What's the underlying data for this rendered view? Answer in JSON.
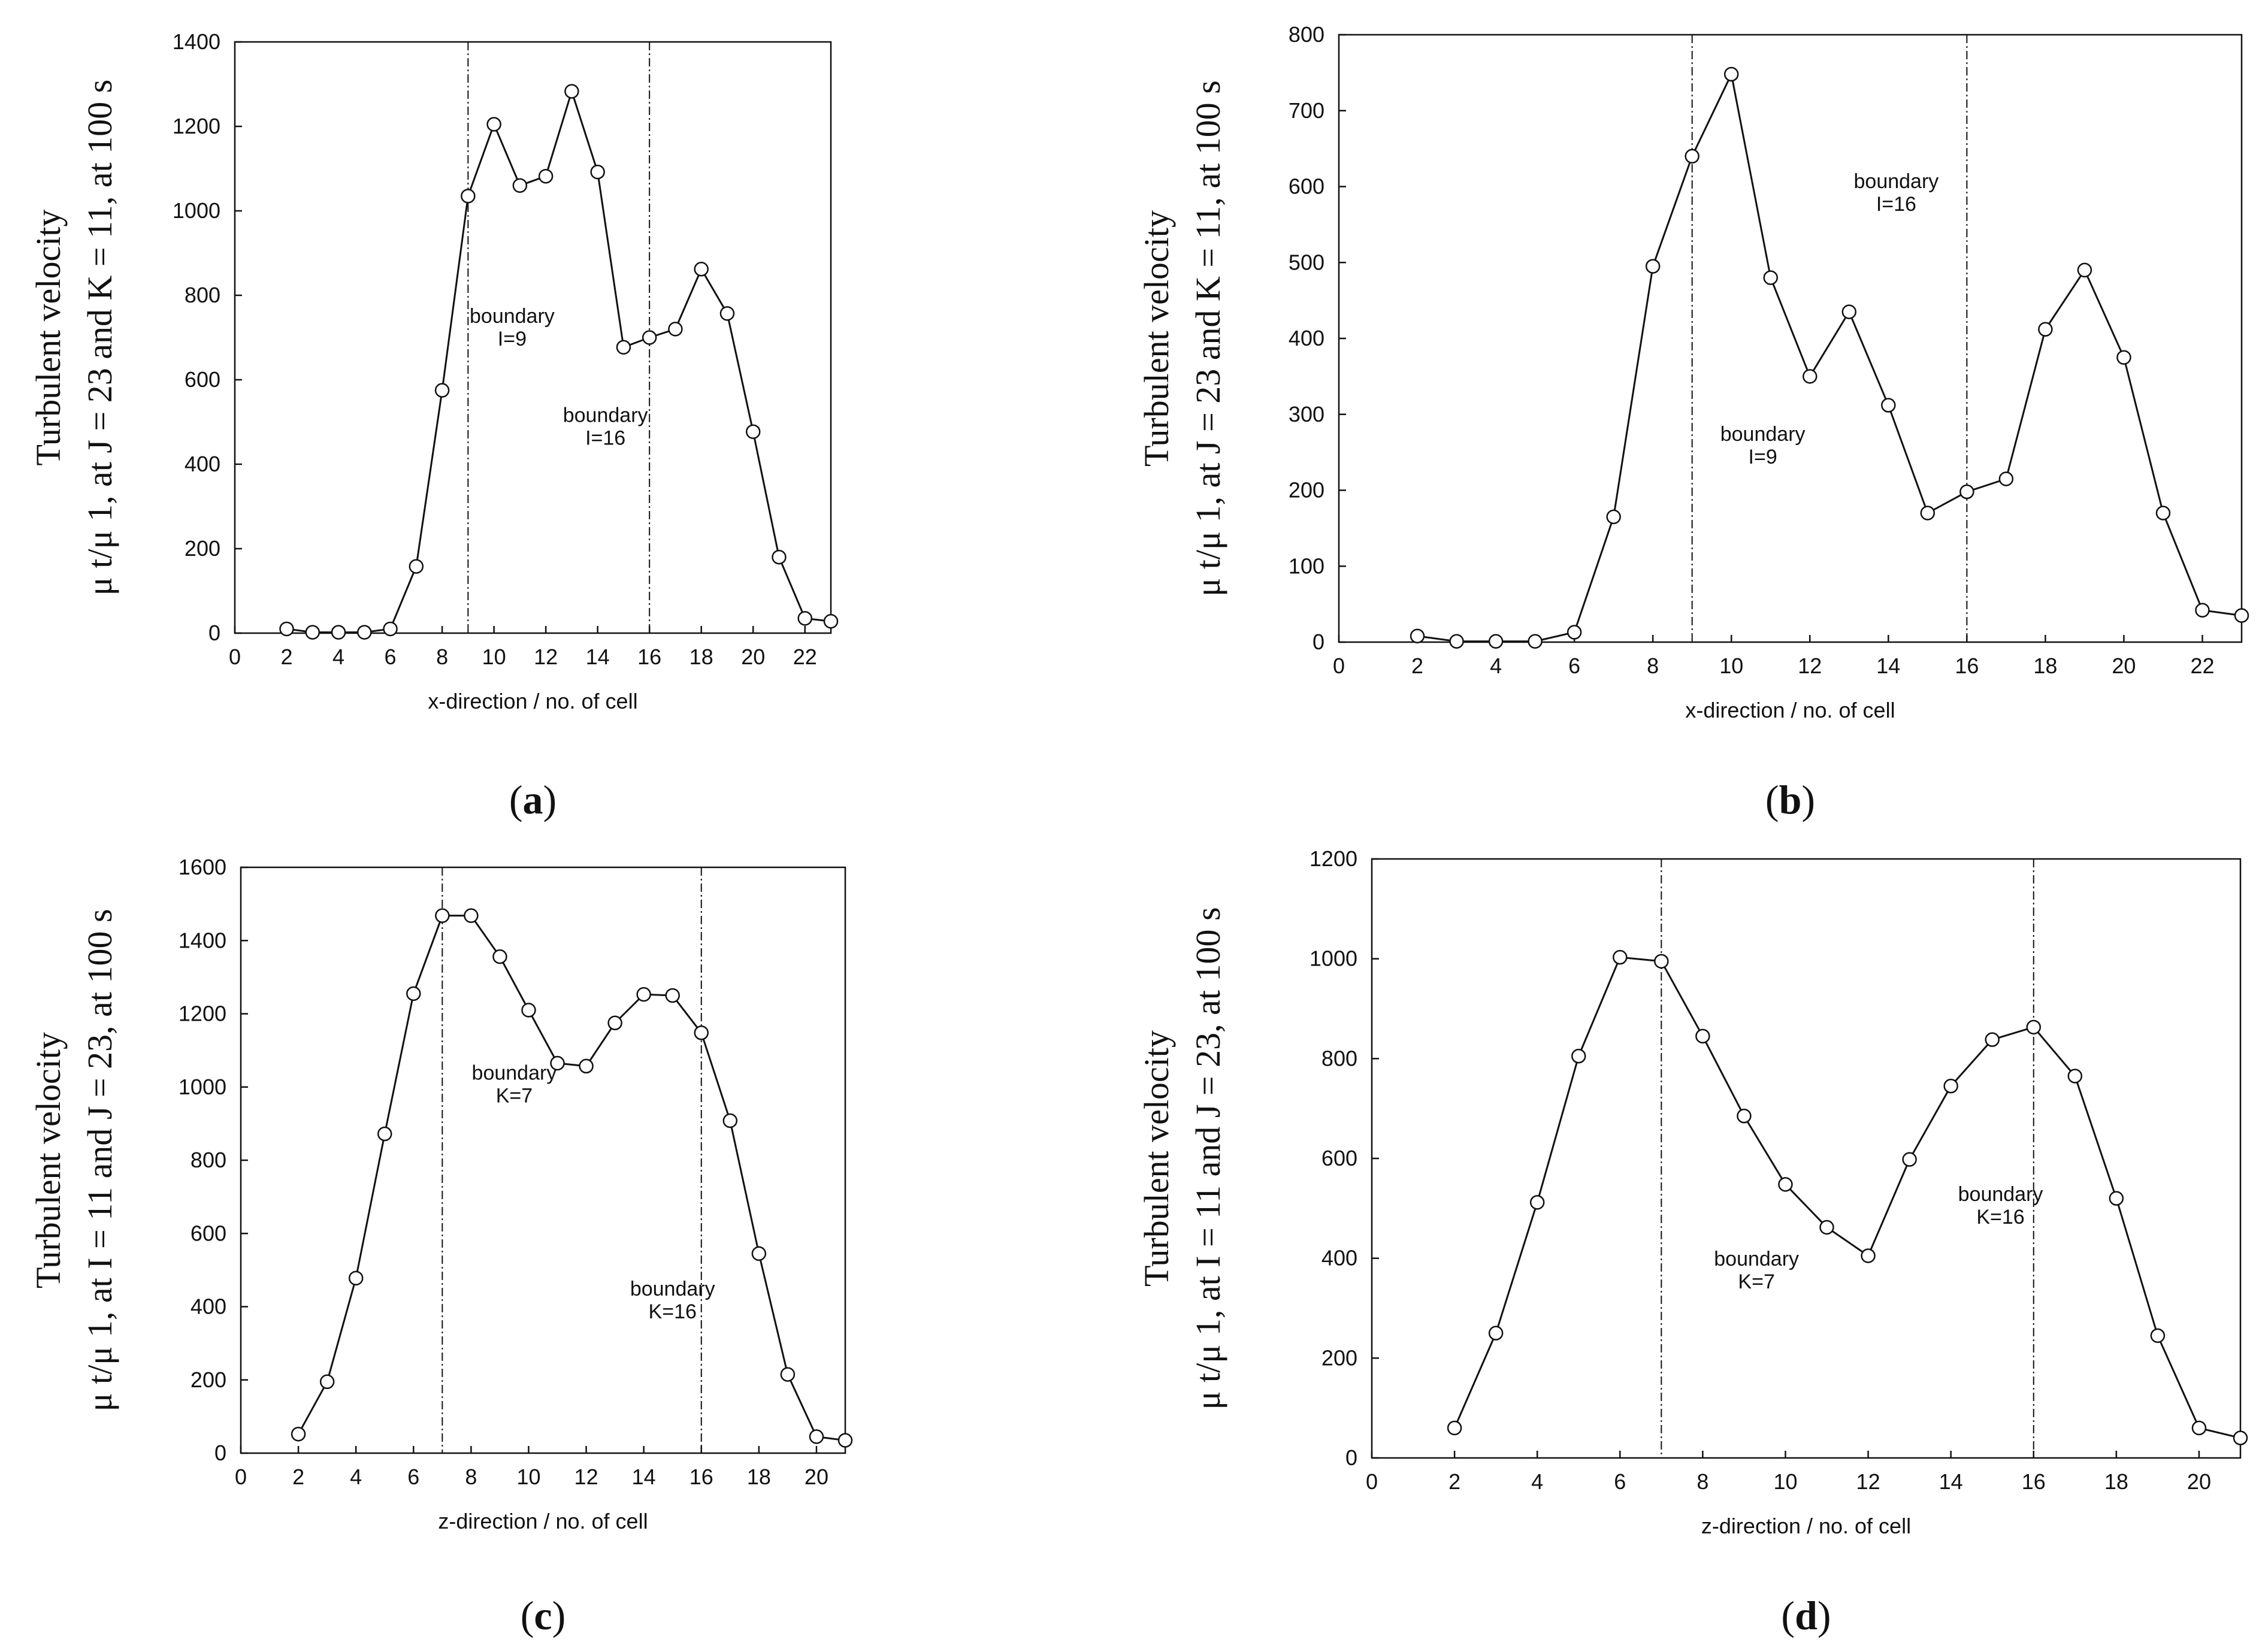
{
  "chart_data": [
    {
      "type": "line",
      "caption": "a",
      "xlabel": "x-direction / no. of cell",
      "ylabel_top": "Turbulent velocity",
      "ylabel_bottom": "μ t/μ 1, at J = 23 and K = 11, at 100 s",
      "xlim": [
        0,
        23
      ],
      "ylim": [
        0,
        1400
      ],
      "xticks": [
        0,
        2,
        4,
        6,
        8,
        10,
        12,
        14,
        16,
        18,
        20,
        22
      ],
      "yticks": [
        0,
        200,
        400,
        600,
        800,
        1000,
        1200,
        1400
      ],
      "x": [
        2,
        3,
        4,
        5,
        6,
        7,
        8,
        9,
        10,
        11,
        12,
        13,
        14,
        15,
        16,
        17,
        18,
        19,
        20,
        21,
        22,
        23
      ],
      "values": [
        10,
        2,
        2,
        2,
        10,
        158,
        575,
        1035,
        1205,
        1060,
        1082,
        1283,
        1092,
        677,
        700,
        720,
        862,
        757,
        477,
        180,
        35,
        28
      ],
      "boundaries": [
        {
          "x": 9,
          "line1": "boundary",
          "line2": "I=9",
          "label_x": 10.7,
          "label_y": 735
        },
        {
          "x": 16,
          "line1": "boundary",
          "line2": "I=16",
          "label_x": 14.3,
          "label_y": 500
        }
      ]
    },
    {
      "type": "line",
      "caption": "b",
      "xlabel": "x-direction / no. of cell",
      "ylabel_top": "Turbulent velocity",
      "ylabel_bottom": "μ t/μ 1, at J = 23 and K = 11, at 100 s",
      "xlim": [
        0,
        23
      ],
      "ylim": [
        0,
        800
      ],
      "xticks": [
        0,
        2,
        4,
        6,
        8,
        10,
        12,
        14,
        16,
        18,
        20,
        22
      ],
      "yticks": [
        0,
        100,
        200,
        300,
        400,
        500,
        600,
        700,
        800
      ],
      "x": [
        2,
        3,
        4,
        5,
        6,
        7,
        8,
        9,
        10,
        11,
        12,
        13,
        14,
        15,
        16,
        17,
        18,
        19,
        20,
        21,
        22,
        23
      ],
      "values": [
        8,
        1,
        1,
        1,
        13,
        165,
        495,
        640,
        748,
        480,
        350,
        435,
        312,
        170,
        198,
        215,
        412,
        490,
        375,
        170,
        42,
        35
      ],
      "boundaries": [
        {
          "x": 9,
          "line1": "boundary",
          "line2": "I=9",
          "label_x": 10.8,
          "label_y": 265
        },
        {
          "x": 16,
          "line1": "boundary",
          "line2": "I=16",
          "label_x": 14.2,
          "label_y": 598
        }
      ]
    },
    {
      "type": "line",
      "caption": "c",
      "xlabel": "z-direction / no. of cell",
      "ylabel_top": "Turbulent velocity",
      "ylabel_bottom": "μ t/μ 1, at I = 11 and J = 23, at 100 s",
      "xlim": [
        0,
        21
      ],
      "ylim": [
        0,
        1600
      ],
      "xticks": [
        0,
        2,
        4,
        6,
        8,
        10,
        12,
        14,
        16,
        18,
        20
      ],
      "yticks": [
        0,
        200,
        400,
        600,
        800,
        1000,
        1200,
        1400,
        1600
      ],
      "x": [
        2,
        3,
        4,
        5,
        6,
        7,
        8,
        9,
        10,
        11,
        12,
        13,
        14,
        15,
        16,
        17,
        18,
        19,
        20,
        21
      ],
      "values": [
        52,
        195,
        478,
        872,
        1255,
        1468,
        1468,
        1356,
        1210,
        1065,
        1057,
        1175,
        1253,
        1250,
        1148,
        908,
        545,
        215,
        45,
        35
      ],
      "boundaries": [
        {
          "x": 7,
          "line1": "boundary",
          "line2": "K=7",
          "label_x": 9.5,
          "label_y": 1020
        },
        {
          "x": 16,
          "line1": "boundary",
          "line2": "K=16",
          "label_x": 15.0,
          "label_y": 430
        }
      ]
    },
    {
      "type": "line",
      "caption": "d",
      "xlabel": "z-direction / no. of cell",
      "ylabel_top": "Turbulent velocity",
      "ylabel_bottom": "μ t/μ 1, at I = 11 and J = 23, at 100 s",
      "xlim": [
        0,
        21
      ],
      "ylim": [
        0,
        1200
      ],
      "xticks": [
        0,
        2,
        4,
        6,
        8,
        10,
        12,
        14,
        16,
        18,
        20
      ],
      "yticks": [
        0,
        200,
        400,
        600,
        800,
        1000,
        1200
      ],
      "x": [
        2,
        3,
        4,
        5,
        6,
        7,
        8,
        9,
        10,
        11,
        12,
        13,
        14,
        15,
        16,
        17,
        18,
        19,
        20,
        21
      ],
      "values": [
        60,
        250,
        512,
        805,
        1003,
        995,
        845,
        685,
        548,
        462,
        405,
        598,
        745,
        838,
        863,
        765,
        520,
        245,
        60,
        40
      ],
      "boundaries": [
        {
          "x": 7,
          "line1": "boundary",
          "line2": "K=7",
          "label_x": 9.3,
          "label_y": 385
        },
        {
          "x": 16,
          "line1": "boundary",
          "line2": "K=16",
          "label_x": 15.2,
          "label_y": 515
        }
      ]
    }
  ]
}
